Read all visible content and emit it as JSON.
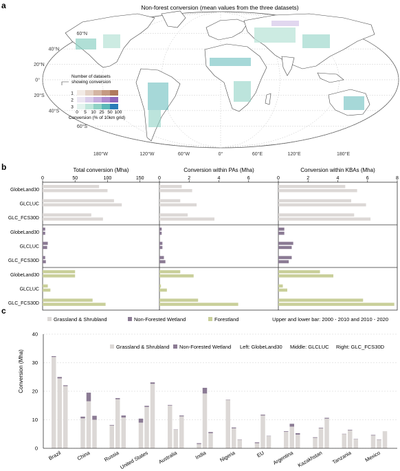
{
  "panel_labels": {
    "a": "a",
    "b": "b",
    "c": "c"
  },
  "map": {
    "title": "Non-forest conversion (mean values from the three datasets)",
    "lat_labels": [
      "60°N",
      "40°N",
      "20°N",
      "0°",
      "20°S",
      "40°S",
      "60°S"
    ],
    "lon_labels": [
      "180°W",
      "120°W",
      "60°W",
      "0°",
      "60°E",
      "120°E",
      "180°E"
    ],
    "legend": {
      "title_line1": "Number of datasets",
      "title_line2": "showing conversion",
      "rows": [
        "1",
        "2",
        "3"
      ],
      "ticks": [
        "0",
        "5",
        "10",
        "25",
        "50",
        "100"
      ],
      "xlabel": "Conversion (% of 10km grid)",
      "colors": [
        [
          "#f2ebe6",
          "#e4d2c6",
          "#d4b5a3",
          "#c59a82",
          "#b07a5d"
        ],
        [
          "#ece7f3",
          "#dacdeb",
          "#c6aedf",
          "#ae8bd0",
          "#8f66bd"
        ],
        [
          "#e3f3ee",
          "#bfe6db",
          "#8fd2c5",
          "#5cb8b8",
          "#2a7db8"
        ]
      ]
    },
    "color_meaning": {
      "one": "#c59a82",
      "two": "#ae8bd0",
      "three": "#5cb8b8"
    }
  },
  "chart_data": [
    {
      "type": "bar",
      "orientation": "horizontal",
      "panels": [
        {
          "title": "Total conversion (Mha)",
          "xlim": [
            0,
            180
          ],
          "ticks": [
            "0",
            "50",
            "100",
            "150"
          ]
        },
        {
          "title": "Conversion within PAs (Mha)",
          "xlim": [
            0,
            8
          ],
          "ticks": [
            "0",
            "2",
            "4",
            "6"
          ]
        },
        {
          "title": "Conversion within KBAs (Mha)",
          "xlim": [
            0,
            8
          ],
          "ticks": [
            "0",
            "2",
            "4",
            "6",
            "8"
          ]
        }
      ],
      "datasets": [
        "GlobeLand30",
        "GLCLUC",
        "GLC_FCS30D"
      ],
      "groups": [
        {
          "name": "Grassland & Shrubland",
          "color": "#dcd8d6",
          "values": [
            [
              [
                87,
                100
              ],
              [
                1.5,
                2.2
              ],
              [
                4.5,
                5.3
              ]
            ],
            [
              [
                110,
                122
              ],
              [
                1.4,
                2.5
              ],
              [
                4.9,
                5.9
              ]
            ],
            [
              [
                75,
                93
              ],
              [
                1.9,
                3.7
              ],
              [
                5.1,
                6.2
              ]
            ]
          ]
        },
        {
          "name": "Non-Forested Wetland",
          "color": "#8b7b94",
          "values": [
            [
              [
                4,
                4
              ],
              [
                0.15,
                0.15
              ],
              [
                0.4,
                0.4
              ]
            ],
            [
              [
                8,
                7
              ],
              [
                0.2,
                0.2
              ],
              [
                1.0,
                0.9
              ]
            ],
            [
              [
                4,
                5
              ],
              [
                0.3,
                0.4
              ],
              [
                0.9,
                0.7
              ]
            ]
          ]
        },
        {
          "name": "Forestland",
          "color": "#c9cf9a",
          "values": [
            [
              [
                50,
                50
              ],
              [
                1.4,
                2.3
              ],
              [
                2.8,
                3.7
              ]
            ],
            [
              [
                8,
                12
              ],
              [
                0.1,
                0.5
              ],
              [
                0.3,
                0.6
              ]
            ],
            [
              [
                77,
                97
              ],
              [
                2.6,
                5.3
              ],
              [
                5.7,
                7.8
              ]
            ]
          ]
        }
      ],
      "legend": [
        "Grassland & Shrubland",
        "Non-Forested Wetland",
        "Forestland"
      ],
      "note": "Upper and lower bar: 2000 - 2010 and 2010 - 2020"
    },
    {
      "type": "bar",
      "stacked": true,
      "ylabel": "Conversion (Mha)",
      "ylim": [
        0,
        40
      ],
      "yticks": [
        "0",
        "10",
        "20",
        "30",
        "40"
      ],
      "categories": [
        "Brazil",
        "China",
        "Russia",
        "United States",
        "Australia",
        "India",
        "Nigeria",
        "EU",
        "Argentina",
        "Kazakhstan",
        "Tanzania",
        "Mexico"
      ],
      "legend": [
        "Grassland & Shrubland",
        "Non-Forested Wetland"
      ],
      "note_left": "Left: GlobeLand30",
      "note_middle": "Middle: GLCLUC",
      "note_right": "Right: GLC_FCS30D",
      "colors": {
        "grass": "#dcd8d6",
        "wetland": "#8b7b94"
      },
      "series": [
        {
          "name": "GlobeLand30",
          "grass": [
            32.0,
            10.5,
            8.0,
            9.0,
            15.0,
            1.5,
            17.0,
            1.8,
            5.8,
            3.7,
            5.0,
            4.5
          ],
          "wetland": [
            0.3,
            0.6,
            0.2,
            1.4,
            0.2,
            0.3,
            0.1,
            0.3,
            0.2,
            0.2,
            0.1,
            0.2
          ]
        },
        {
          "name": "GLCLUC",
          "grass": [
            24.5,
            16.5,
            17.2,
            14.5,
            6.5,
            19.2,
            7.0,
            11.5,
            7.6,
            7.0,
            6.3,
            3.0
          ],
          "wetland": [
            0.5,
            3.0,
            0.4,
            0.4,
            0.1,
            2.0,
            0.3,
            0.3,
            1.0,
            0.2,
            0.2,
            0.1
          ]
        },
        {
          "name": "GLC_FCS30D",
          "grass": [
            21.8,
            10.0,
            10.8,
            22.6,
            11.2,
            5.3,
            3.0,
            4.3,
            4.8,
            10.4,
            3.2,
            6.0
          ],
          "wetland": [
            0.3,
            1.4,
            0.7,
            0.5,
            0.3,
            0.4,
            0.1,
            0.1,
            0.5,
            0.3,
            0.1,
            0.0
          ]
        }
      ]
    }
  ]
}
